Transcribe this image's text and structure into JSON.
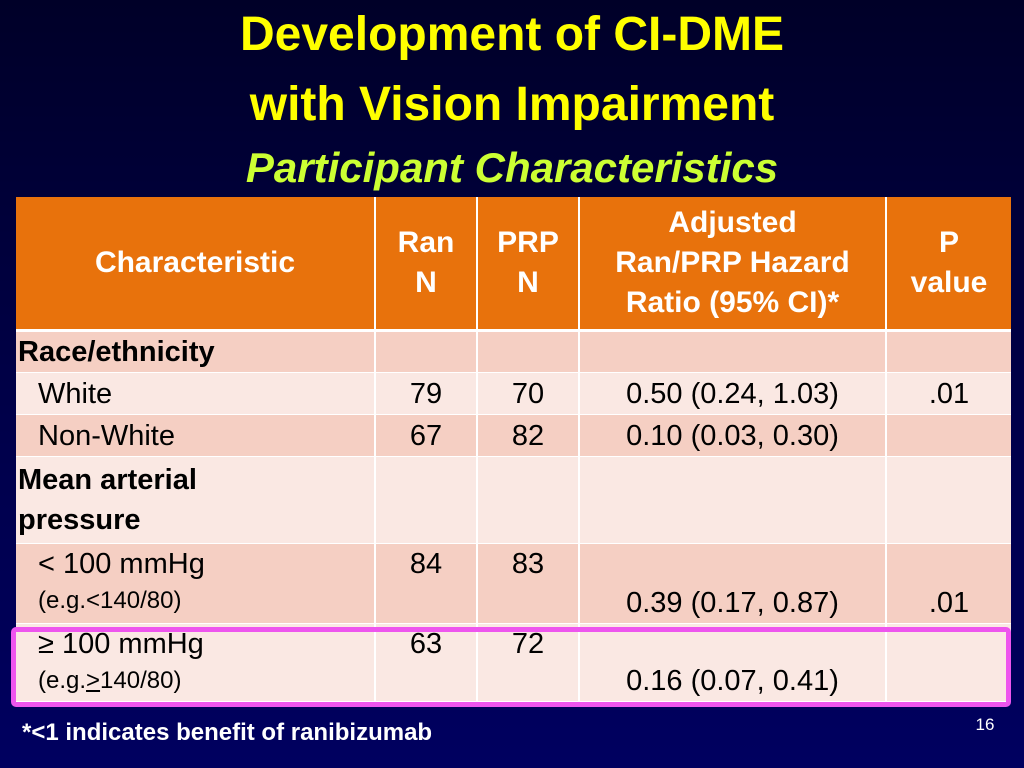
{
  "title": {
    "line1": "Development of CI-DME",
    "line2": "with Vision Impairment",
    "subtitle": "Participant Characteristics"
  },
  "table": {
    "headers": {
      "characteristic": "Characteristic",
      "ran_line1": "Ran",
      "ran_line2": "N",
      "prp_line1": "PRP",
      "prp_line2": "N",
      "hr_line1": "Adjusted",
      "hr_line2": "Ran/PRP Hazard",
      "hr_line3": "Ratio (95% CI)*",
      "p_line1": "P",
      "p_line2": "value"
    },
    "race": {
      "label": "Race/ethnicity",
      "white": {
        "label": "White",
        "ran_n": "79",
        "prp_n": "70",
        "hr": "0.50 (0.24, 1.03)",
        "p": ".01"
      },
      "nonwhite": {
        "label": "Non-White",
        "ran_n": "67",
        "prp_n": "82",
        "hr": "0.10 (0.03, 0.30)",
        "p": ""
      }
    },
    "map": {
      "label_line1": "Mean arterial",
      "label_line2": "pressure",
      "low": {
        "label": "< 100 mmHg",
        "example": "(e.g.<140/80)",
        "ran_n": "84",
        "prp_n": "83",
        "hr": "0.39 (0.17, 0.87)",
        "p": ".01"
      },
      "high": {
        "label": "≥ 100 mmHg",
        "example_prefix": "(e.g.",
        "example_symbol": ">",
        "example_suffix": "140/80)",
        "ran_n": "63",
        "prp_n": "72",
        "hr": "0.16 (0.07, 0.41)",
        "p": ""
      }
    }
  },
  "footnote": "*<1 indicates benefit of ranibizumab",
  "slide_number": "16",
  "colors": {
    "title": "#ffff00",
    "subtitle": "#ccff33",
    "header_bg": "#e8720c",
    "row_dark": "#f5cfc3",
    "row_light": "#fae8e3",
    "highlight": "#ee55ee"
  }
}
